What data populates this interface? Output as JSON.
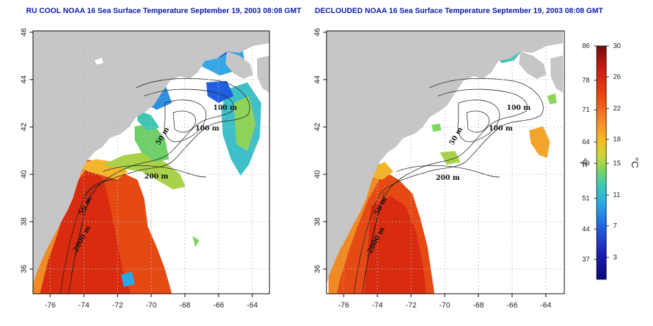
{
  "titles": {
    "left": "RU COOL NOAA 16 Sea Surface Temperature September 19, 2003 08:08 GMT",
    "right": "DECLOUDED NOAA 16 Sea Surface Temperature September 19, 2003 08:08 GMT"
  },
  "map": {
    "lon_ticks": [
      "-76",
      "-74",
      "-72",
      "-70",
      "-68",
      "-66",
      "-64"
    ],
    "lat_ticks": [
      "46",
      "44",
      "42",
      "40",
      "38",
      "36"
    ],
    "contour_labels_left": [
      "100 m",
      "100 m",
      "50 m",
      "200 m",
      "50 m",
      "2000 m"
    ],
    "contour_labels_right": [
      "100 m",
      "100 m",
      "50 m",
      "200 m",
      "50 m",
      "2000 m"
    ]
  },
  "colorbar": {
    "fahrenheit_ticks": [
      "86",
      "78",
      "71",
      "64",
      "59",
      "51",
      "44",
      "37"
    ],
    "celsius_ticks": [
      "30",
      "26",
      "22",
      "18",
      "15",
      "11",
      "7",
      "3"
    ],
    "unit_f": "°F",
    "unit_c": "°C",
    "colors": [
      "#7a0a0a",
      "#c81e12",
      "#ec4a14",
      "#f6892a",
      "#f7b825",
      "#cfd53a",
      "#7fd65e",
      "#38c9b8",
      "#2aa7e8",
      "#1f5fe0",
      "#1a1ab0",
      "#0c0a78"
    ]
  }
}
